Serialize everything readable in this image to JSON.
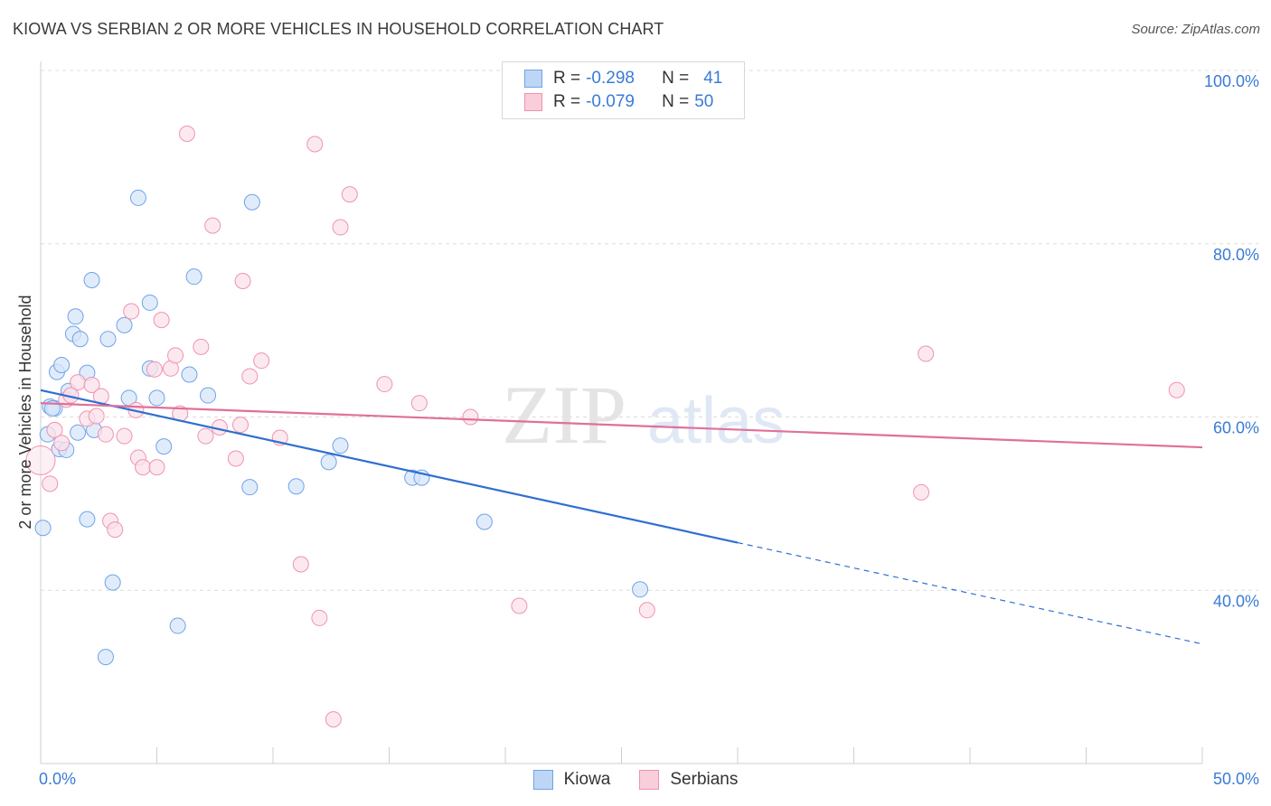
{
  "title": "KIOWA VS SERBIAN 2 OR MORE VEHICLES IN HOUSEHOLD CORRELATION CHART",
  "source": "Source: ZipAtlas.com",
  "watermark": {
    "zip": "ZIP",
    "atlas": "atlas"
  },
  "legend": {
    "rows": [
      {
        "r_label": "R =",
        "r_value": "-0.298",
        "n_label": "N =",
        "n_value": "41",
        "color": "#6fa3e8"
      },
      {
        "r_label": "R =",
        "r_value": "-0.079",
        "n_label": "N =",
        "n_value": "50",
        "color": "#ef93b0"
      }
    ]
  },
  "bottom_legend": [
    {
      "label": "Kiowa",
      "color": "#6fa3e8"
    },
    {
      "label": "Serbians",
      "color": "#ef93b0"
    }
  ],
  "chart_data": {
    "type": "scatter",
    "title": "KIOWA VS SERBIAN 2 OR MORE VEHICLES IN HOUSEHOLD CORRELATION CHART",
    "xlabel": "",
    "ylabel": "2 or more Vehicles in Household",
    "xlim": [
      0,
      50
    ],
    "ylim": [
      20,
      100
    ],
    "x_tick_labels": [
      "0.0%",
      "50.0%"
    ],
    "y_ticks": [
      40,
      60,
      80,
      100
    ],
    "y_tick_labels": [
      "40.0%",
      "60.0%",
      "80.0%",
      "100.0%"
    ],
    "grid": true,
    "series": [
      {
        "name": "Kiowa",
        "color": "#6fa3e8",
        "trend": {
          "x": [
            0,
            30,
            50
          ],
          "y": [
            63.1,
            45.5,
            33.8
          ],
          "solid_until": 30
        },
        "points": [
          [
            0.1,
            47.2
          ],
          [
            0.3,
            58.0
          ],
          [
            0.4,
            61.2
          ],
          [
            0.6,
            61.0
          ],
          [
            0.7,
            65.2
          ],
          [
            0.8,
            56.3
          ],
          [
            0.9,
            66.0
          ],
          [
            1.1,
            56.2
          ],
          [
            1.2,
            63.0
          ],
          [
            1.4,
            69.6
          ],
          [
            1.5,
            71.6
          ],
          [
            1.6,
            58.2
          ],
          [
            1.7,
            69.0
          ],
          [
            2.0,
            48.2
          ],
          [
            2.0,
            65.1
          ],
          [
            2.2,
            75.8
          ],
          [
            2.3,
            58.5
          ],
          [
            2.9,
            69.0
          ],
          [
            3.1,
            40.9
          ],
          [
            3.6,
            70.6
          ],
          [
            3.8,
            62.2
          ],
          [
            4.2,
            85.3
          ],
          [
            4.7,
            73.2
          ],
          [
            4.7,
            65.6
          ],
          [
            5.0,
            62.2
          ],
          [
            5.3,
            56.6
          ],
          [
            5.9,
            35.9
          ],
          [
            6.4,
            64.9
          ],
          [
            6.6,
            76.2
          ],
          [
            7.2,
            62.5
          ],
          [
            9.0,
            51.9
          ],
          [
            9.1,
            84.8
          ],
          [
            11.0,
            52.0
          ],
          [
            12.4,
            54.8
          ],
          [
            12.9,
            56.7
          ],
          [
            16.0,
            53.0
          ],
          [
            16.4,
            53.0
          ],
          [
            19.1,
            47.9
          ],
          [
            25.8,
            40.1
          ],
          [
            2.8,
            32.3
          ],
          [
            0.5,
            61.0
          ]
        ]
      },
      {
        "name": "Serbians",
        "color": "#ef93b0",
        "trend": {
          "x": [
            0,
            50
          ],
          "y": [
            61.6,
            56.5
          ],
          "solid_until": 50
        },
        "points": [
          [
            0.0,
            55.0
          ],
          [
            0.4,
            52.3
          ],
          [
            0.6,
            58.5
          ],
          [
            0.9,
            57.0
          ],
          [
            1.1,
            62.0
          ],
          [
            1.3,
            62.5
          ],
          [
            1.6,
            64.0
          ],
          [
            2.0,
            59.8
          ],
          [
            2.2,
            63.7
          ],
          [
            2.4,
            60.1
          ],
          [
            2.6,
            62.4
          ],
          [
            2.8,
            58.0
          ],
          [
            3.0,
            48.0
          ],
          [
            3.2,
            47.0
          ],
          [
            3.6,
            57.8
          ],
          [
            3.9,
            72.2
          ],
          [
            4.1,
            60.8
          ],
          [
            4.2,
            55.3
          ],
          [
            4.4,
            54.2
          ],
          [
            4.9,
            65.5
          ],
          [
            5.0,
            54.2
          ],
          [
            5.2,
            71.2
          ],
          [
            5.6,
            65.6
          ],
          [
            5.8,
            67.1
          ],
          [
            6.0,
            60.4
          ],
          [
            6.3,
            92.7
          ],
          [
            6.9,
            68.1
          ],
          [
            7.1,
            57.8
          ],
          [
            7.4,
            82.1
          ],
          [
            7.7,
            58.8
          ],
          [
            8.4,
            55.2
          ],
          [
            8.6,
            59.1
          ],
          [
            8.7,
            75.7
          ],
          [
            9.0,
            64.7
          ],
          [
            9.5,
            66.5
          ],
          [
            10.3,
            57.6
          ],
          [
            11.2,
            43.0
          ],
          [
            11.8,
            91.5
          ],
          [
            12.0,
            36.8
          ],
          [
            12.6,
            25.1
          ],
          [
            12.9,
            81.9
          ],
          [
            13.3,
            85.7
          ],
          [
            14.8,
            63.8
          ],
          [
            16.3,
            61.6
          ],
          [
            18.5,
            60.0
          ],
          [
            20.6,
            38.2
          ],
          [
            26.1,
            37.7
          ],
          [
            37.9,
            51.3
          ],
          [
            38.1,
            67.3
          ],
          [
            48.9,
            63.1
          ]
        ]
      }
    ]
  }
}
